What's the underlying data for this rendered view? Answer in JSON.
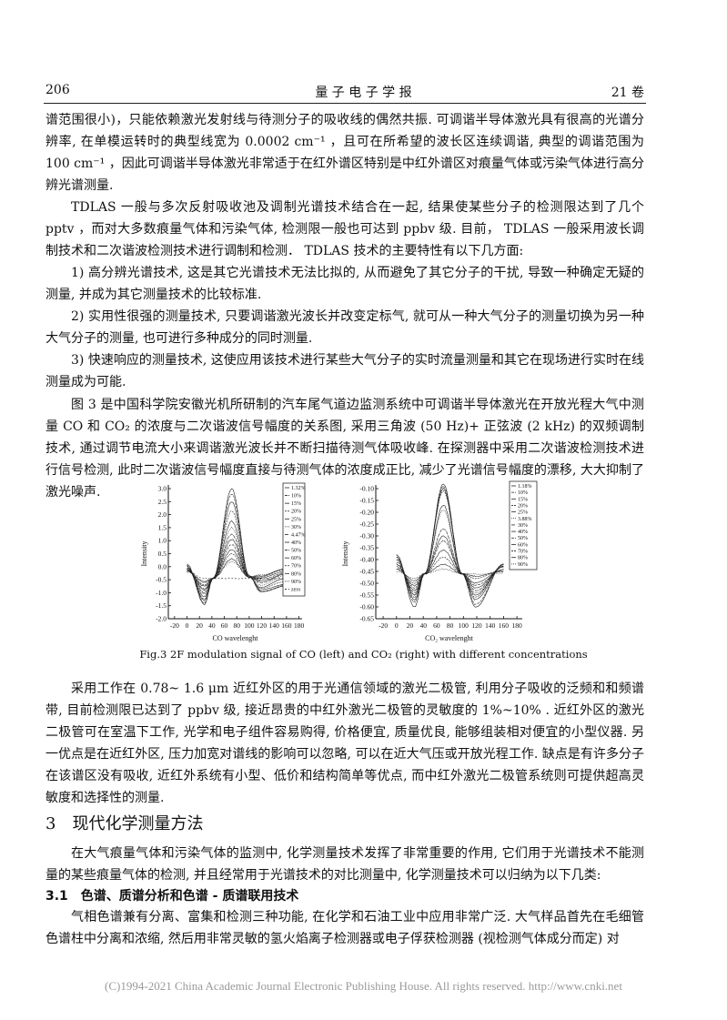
{
  "header": {
    "page_number": "206",
    "journal": "量 子 电 子 学 报",
    "volume": "21 卷"
  },
  "paragraphs": [
    "谱范围很小)，只能依赖激光发射线与待测分子的吸收线的偶然共振. 可调谐半导体激光具有很高的光谱分辨率, 在单模运转时的典型线宽为 0.0002 cm⁻¹ ，且可在所希望的波长区连续调谐, 典型的调谐范围为 100 cm⁻¹ ，因此可调谐半导体激光非常适于在红外谱区特别是中红外谱区对痕量气体或污染气体进行高分辨光谱测量.",
    "TDLAS 一般与多次反射吸收池及调制光谱技术结合在一起, 结果使某些分子的检测限达到了几个 pptv ，而对大多数痕量气体和污染气体, 检测限一般也可达到 ppbv 级. 目前， TDLAS 一般采用波长调制技术和二次谐波检测技术进行调制和检测． TDLAS 技术的主要特性有以下几方面:",
    "1) 高分辨光谱技术, 这是其它光谱技术无法比拟的, 从而避免了其它分子的干扰, 导致一种确定无疑的测量, 并成为其它测量技术的比较标准.",
    "2) 实用性很强的测量技术, 只要调谐激光波长并改变定标气, 就可从一种大气分子的测量切换为另一种大气分子的测量, 也可进行多种成分的同时测量.",
    "3) 快速响应的测量技术, 这使应用该技术进行某些大气分子的实时流量测量和其它在现场进行实时在线测量成为可能.",
    "图 3 是中国科学院安徽光机所研制的汽车尾气道边监测系统中可调谐半导体激光在开放光程大气中测量 CO 和 CO₂ 的浓度与二次谐波信号幅度的关系图, 采用三角波 (50 Hz)+ 正弦波 (2 kHz) 的双频调制技术, 通过调节电流大小来调谐激光波长并不断扫描待测气体吸收峰. 在探测器中采用二次谐波检测技术进行信号检测, 此时二次谐波信号幅度直接与待测气体的浓度成正比, 减少了光谱信号幅度的漂移, 大大抑制了激光噪声.",
    "采用工作在 0.78~ 1.6 μm 近红外区的用于光通信领域的激光二极管, 利用分子吸收的泛频和和频谱带, 目前检测限已达到了 ppbv 级, 接近昂贵的中红外激光二极管的灵敏度的 1%~10% . 近红外区的激光二极管可在室温下工作, 光学和电子组件容易购得, 价格便宜, 质量优良, 能够组装相对便宜的小型仪器. 另一优点是在近红外区, 压力加宽对谱线的影响可以忽略, 可以在近大气压或开放光程工作. 缺点是有许多分子在该谱区没有吸收, 近红外系统有小型、低价和结构简单等优点, 而中红外激光二极管系统则可提供超高灵敏度和选择性的测量.",
    "在大气痕量气体和污染气体的监测中, 化学测量技术发挥了非常重要的作用, 它们用于光谱技术不能测量的某些痕量气体的检测, 并且经常用于光谱技术的对比测量中, 化学测量技术可以归纳为以下几类:",
    "气相色谱兼有分离、富集和检测三种功能, 在化学和石油工业中应用非常广泛. 大气样品首先在毛细管色谱柱中分离和浓缩, 然后用非常灵敏的氢火焰离子检测器或电子俘获检测器 (视检测气体成分而定) 对"
  ],
  "section_heading": "3　现代化学测量方法",
  "subsection_heading": "3.1　色谱、质谱分析和色谱 - 质谱联用技术",
  "figure_caption": "Fig.3  2F modulation signal of CO (left) and CO₂ (right) with different concentrations",
  "footer": "(C)1994-2021 China Academic Journal Electronic Publishing House. All rights reserved.    http://www.cnki.net",
  "chart_data": [
    {
      "type": "line",
      "xlabel": "CO wavelenght",
      "ylabel": "Intensity",
      "xlim": [
        -20,
        180
      ],
      "ylim": [
        -2.0,
        3.0
      ],
      "xticks": [
        "-20",
        "0",
        "20",
        "40",
        "60",
        "80",
        "100",
        "120",
        "140",
        "160",
        "180"
      ],
      "yticks": [
        "3.0",
        "2.5",
        "2.0",
        "1.5",
        "1.0",
        "0.5",
        "0.0",
        "-0.5",
        "-1.0",
        "-1.5",
        "-2.0"
      ],
      "legend_position": "top-right",
      "x": [
        0,
        28,
        42,
        72,
        100,
        118,
        160
      ],
      "series": [
        {
          "name": "1.32%",
          "values": [
            0.1,
            -1.45,
            -0.45,
            3.0,
            -0.35,
            -0.95,
            -0.75
          ]
        },
        {
          "name": "10%",
          "values": [
            0.05,
            -1.4,
            -0.45,
            2.8,
            -0.35,
            -0.95,
            -0.7
          ]
        },
        {
          "name": "15%",
          "values": [
            0.0,
            -1.3,
            -0.45,
            2.5,
            -0.35,
            -0.9,
            -0.65
          ]
        },
        {
          "name": "20%",
          "values": [
            0.0,
            -1.25,
            -0.45,
            2.15,
            -0.4,
            -0.85,
            -0.55
          ]
        },
        {
          "name": "25%",
          "values": [
            -0.05,
            -1.15,
            -0.45,
            1.75,
            -0.4,
            -0.8,
            -0.45
          ]
        },
        {
          "name": "30%",
          "values": [
            -0.05,
            -1.05,
            -0.45,
            1.5,
            -0.4,
            -0.7,
            -0.35
          ]
        },
        {
          "name": "4.47%",
          "values": [
            -0.1,
            -1.0,
            -0.45,
            1.25,
            -0.4,
            -0.6,
            -0.3
          ]
        },
        {
          "name": "40%",
          "values": [
            -0.1,
            -0.9,
            -0.45,
            1.05,
            -0.4,
            -0.55,
            -0.25
          ]
        },
        {
          "name": "50%",
          "values": [
            -0.1,
            -0.85,
            -0.45,
            0.85,
            -0.4,
            -0.5,
            -0.2
          ]
        },
        {
          "name": "60%",
          "values": [
            -0.15,
            -0.75,
            -0.45,
            0.65,
            -0.4,
            -0.45,
            -0.15
          ]
        },
        {
          "name": "70%",
          "values": [
            -0.15,
            -0.7,
            -0.45,
            0.5,
            -0.4,
            -0.4,
            -0.1
          ]
        },
        {
          "name": "80%",
          "values": [
            -0.15,
            -0.6,
            -0.45,
            0.3,
            -0.4,
            -0.35,
            -0.1
          ]
        },
        {
          "name": "90%",
          "values": [
            -0.2,
            -0.55,
            -0.45,
            0.2,
            -0.4,
            -0.3,
            -0.1
          ]
        },
        {
          "name": "zero",
          "values": [
            -0.2,
            -0.45,
            -0.45,
            -0.45,
            -0.45,
            -0.45,
            -0.45
          ]
        }
      ]
    },
    {
      "type": "line",
      "xlabel": "CO₂ wavelenght",
      "ylabel": "Intensity",
      "xlim": [
        -20,
        180
      ],
      "ylim": [
        -0.65,
        -0.1
      ],
      "xticks": [
        "-20",
        "0",
        "20",
        "40",
        "60",
        "80",
        "100",
        "120",
        "140",
        "160",
        "180"
      ],
      "yticks": [
        "-0.10",
        "-0.15",
        "-0.20",
        "-0.25",
        "-0.30",
        "-0.35",
        "-0.40",
        "-0.45",
        "-0.50",
        "-0.55",
        "-0.60",
        "-0.65"
      ],
      "legend_position": "top-right",
      "x": [
        0,
        27,
        42,
        70,
        98,
        118,
        160
      ],
      "series": [
        {
          "name": "1.18%",
          "values": [
            -0.38,
            -0.6,
            -0.46,
            -0.08,
            -0.46,
            -0.6,
            -0.42
          ]
        },
        {
          "name": "10%",
          "values": [
            -0.38,
            -0.58,
            -0.46,
            -0.09,
            -0.46,
            -0.59,
            -0.42
          ]
        },
        {
          "name": "15%",
          "values": [
            -0.39,
            -0.57,
            -0.46,
            -0.1,
            -0.46,
            -0.57,
            -0.42
          ]
        },
        {
          "name": "20%",
          "values": [
            -0.39,
            -0.56,
            -0.46,
            -0.11,
            -0.46,
            -0.56,
            -0.42
          ]
        },
        {
          "name": "25%",
          "values": [
            -0.4,
            -0.55,
            -0.46,
            -0.17,
            -0.46,
            -0.55,
            -0.43
          ]
        },
        {
          "name": "3.88%",
          "values": [
            -0.4,
            -0.55,
            -0.46,
            -0.19,
            -0.46,
            -0.54,
            -0.43
          ]
        },
        {
          "name": "30%",
          "values": [
            -0.41,
            -0.54,
            -0.46,
            -0.27,
            -0.46,
            -0.53,
            -0.43
          ]
        },
        {
          "name": "40%",
          "values": [
            -0.42,
            -0.53,
            -0.46,
            -0.3,
            -0.46,
            -0.52,
            -0.43
          ]
        },
        {
          "name": "50%",
          "values": [
            -0.42,
            -0.52,
            -0.46,
            -0.32,
            -0.46,
            -0.51,
            -0.44
          ]
        },
        {
          "name": "60%",
          "values": [
            -0.43,
            -0.51,
            -0.46,
            -0.36,
            -0.46,
            -0.5,
            -0.44
          ]
        },
        {
          "name": "70%",
          "values": [
            -0.44,
            -0.5,
            -0.46,
            -0.39,
            -0.46,
            -0.48,
            -0.45
          ]
        },
        {
          "name": "80%",
          "values": [
            -0.44,
            -0.49,
            -0.46,
            -0.42,
            -0.46,
            -0.47,
            -0.45
          ]
        },
        {
          "name": "90%",
          "values": [
            -0.45,
            -0.48,
            -0.46,
            -0.44,
            -0.46,
            -0.46,
            -0.46
          ]
        }
      ]
    }
  ]
}
